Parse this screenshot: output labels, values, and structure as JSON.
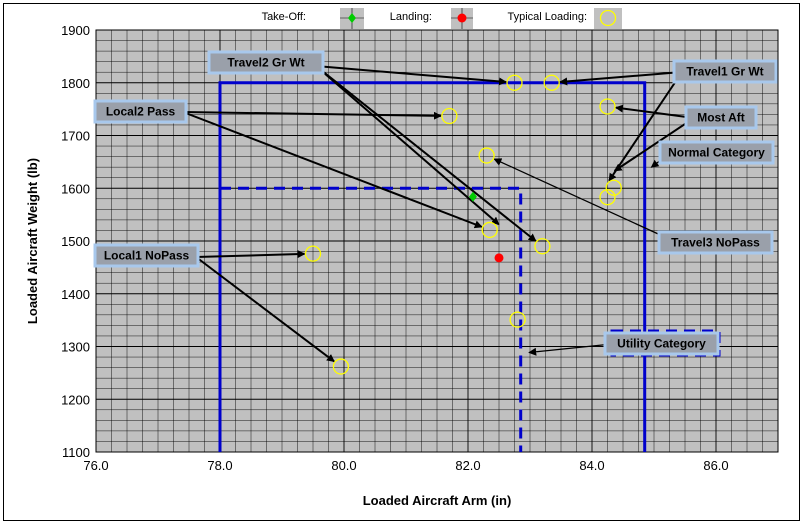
{
  "chart_data": {
    "type": "scatter",
    "title": "",
    "xlabel": "Loaded Aircraft Arm (in)",
    "ylabel": "Loaded Aircraft Weight (lb)",
    "xlim": [
      76.0,
      87.0
    ],
    "ylim": [
      1100,
      1900
    ],
    "x_ticks": [
      "76.0",
      "78.0",
      "80.0",
      "82.0",
      "84.0",
      "86.0"
    ],
    "y_ticks": [
      "1100",
      "1200",
      "1300",
      "1400",
      "1500",
      "1600",
      "1700",
      "1800",
      "1900"
    ],
    "grid": true,
    "legend_position": "top",
    "legend": [
      {
        "label": "Take-Off:",
        "marker": "diamond",
        "color": "#00cc00"
      },
      {
        "label": "Landing:",
        "marker": "circle",
        "color": "#ff0000"
      },
      {
        "label": "Typical Loading:",
        "marker": "open-circle",
        "color": "#ffff00"
      }
    ],
    "takeoff": {
      "x": 82.08,
      "y": 1584
    },
    "landing": {
      "x": 82.5,
      "y": 1468
    },
    "typical_loading": [
      {
        "x": 79.5,
        "y": 1476
      },
      {
        "x": 79.95,
        "y": 1262
      },
      {
        "x": 81.7,
        "y": 1737
      },
      {
        "x": 82.3,
        "y": 1662
      },
      {
        "x": 82.35,
        "y": 1521
      },
      {
        "x": 82.8,
        "y": 1351
      },
      {
        "x": 82.75,
        "y": 1800
      },
      {
        "x": 83.2,
        "y": 1490
      },
      {
        "x": 83.35,
        "y": 1800
      },
      {
        "x": 84.25,
        "y": 1755
      },
      {
        "x": 84.35,
        "y": 1601
      },
      {
        "x": 84.25,
        "y": 1583
      }
    ],
    "envelopes": [
      {
        "name": "Normal Category",
        "style": "solid",
        "color": "#0000cc",
        "points": [
          [
            78.0,
            1100
          ],
          [
            78.0,
            1800
          ],
          [
            84.85,
            1800
          ],
          [
            84.85,
            1100
          ]
        ]
      },
      {
        "name": "Utility Category",
        "style": "dashed",
        "color": "#0000cc",
        "points": [
          [
            78.0,
            1600
          ],
          [
            82.85,
            1600
          ],
          [
            82.85,
            1100
          ]
        ]
      }
    ],
    "annotations": [
      {
        "text": "Travel2 Gr Wt",
        "targets": [
          [
            82.75,
            1800
          ],
          [
            82.6,
            1521
          ],
          [
            83.2,
            1490
          ]
        ]
      },
      {
        "text": "Travel1 Gr Wt",
        "targets": [
          [
            83.35,
            1800
          ],
          [
            84.2,
            1601
          ]
        ]
      },
      {
        "text": "Local2 Pass",
        "targets": [
          [
            81.7,
            1737
          ],
          [
            82.35,
            1521
          ]
        ]
      },
      {
        "text": "Most Aft",
        "targets": [
          [
            84.25,
            1755
          ],
          [
            84.25,
            1624
          ]
        ]
      },
      {
        "text": "Normal Category",
        "targets": [
          [
            84.85,
            1630
          ]
        ]
      },
      {
        "text": "Travel3 NoPass",
        "targets": [
          [
            82.3,
            1662
          ]
        ]
      },
      {
        "text": "Local1 NoPass",
        "targets": [
          [
            79.5,
            1476
          ],
          [
            79.95,
            1262
          ]
        ]
      },
      {
        "text": "Utility Category",
        "targets": [
          [
            82.85,
            1287
          ]
        ]
      }
    ]
  }
}
